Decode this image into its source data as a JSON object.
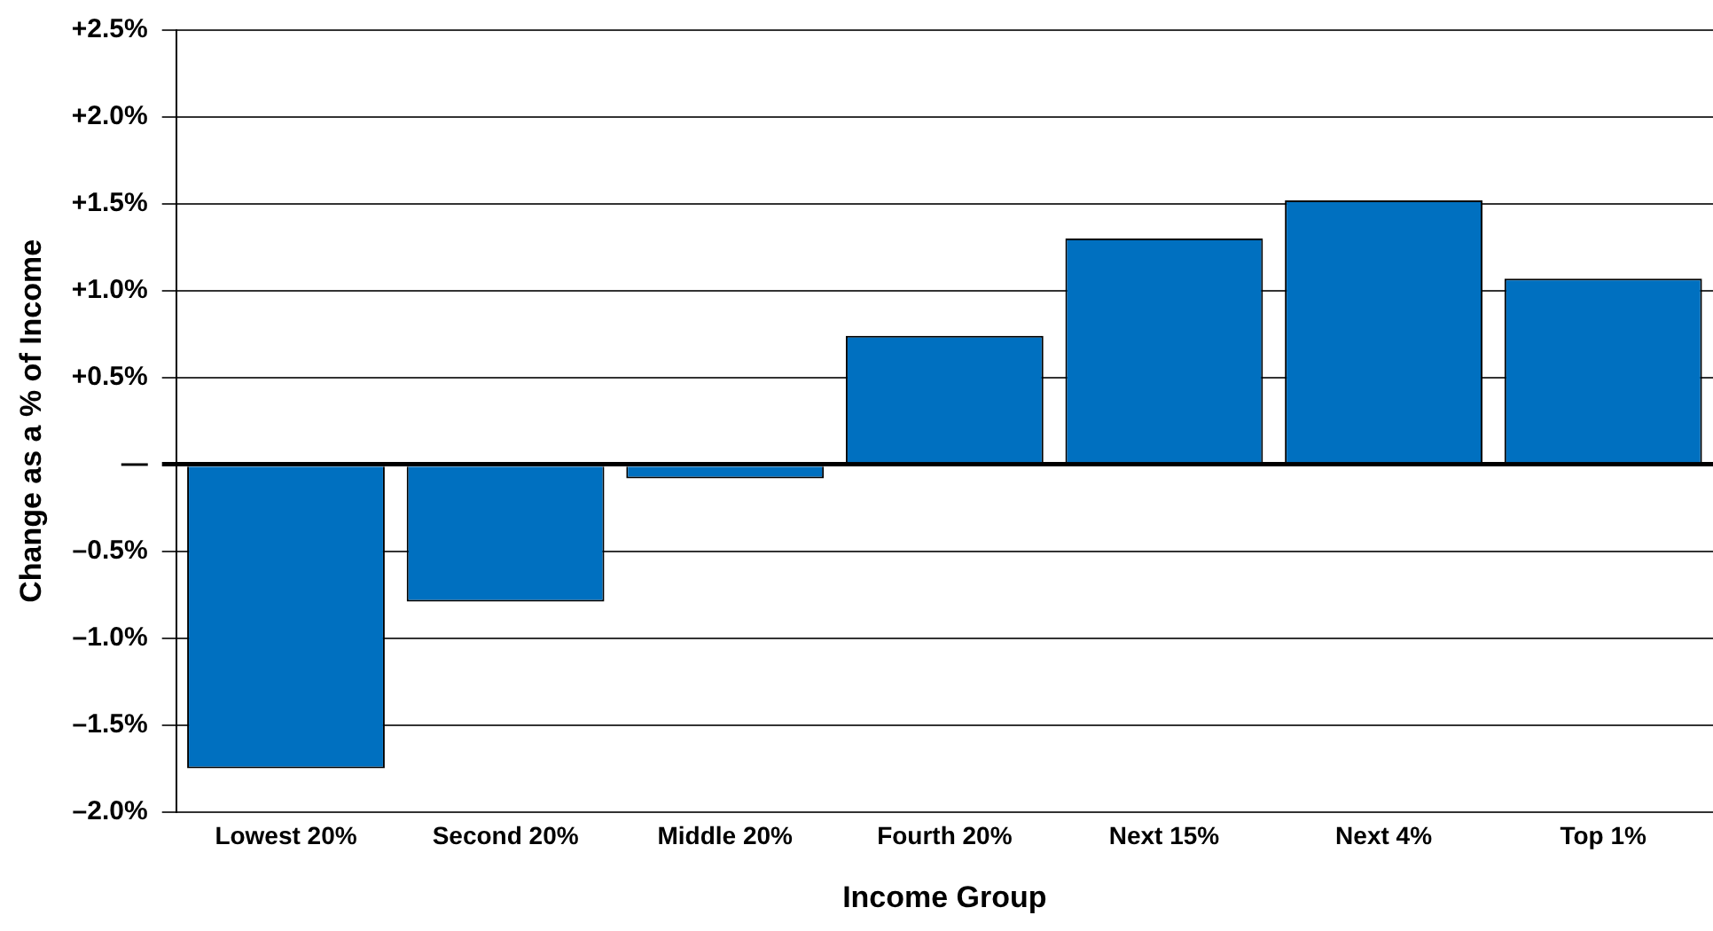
{
  "chart_data": {
    "type": "bar",
    "xlabel": "Income Group",
    "ylabel": "Change as a % of Income",
    "categories": [
      "Lowest 20%",
      "Second 20%",
      "Middle 20%",
      "Fourth 20%",
      "Next 15%",
      "Next 4%",
      "Top 1%"
    ],
    "values": [
      -1.75,
      -0.79,
      -0.08,
      0.74,
      1.3,
      1.52,
      1.07
    ],
    "color": "#0070c0",
    "ylim": [
      -2.0,
      2.5
    ],
    "yticks": [
      {
        "value": -2.0,
        "label": "–2.0%"
      },
      {
        "value": -1.5,
        "label": "–1.5%"
      },
      {
        "value": -1.0,
        "label": "–1.0%"
      },
      {
        "value": -0.5,
        "label": "–0.5%"
      },
      {
        "value": 0,
        "label": "—"
      },
      {
        "value": 0.5,
        "label": "+0.5%"
      },
      {
        "value": 1.0,
        "label": "+1.0%"
      },
      {
        "value": 1.5,
        "label": "+1.5%"
      },
      {
        "value": 2.0,
        "label": "+2.0%"
      },
      {
        "value": 2.5,
        "label": "+2.5%"
      }
    ],
    "grid": "y",
    "legend": false
  }
}
